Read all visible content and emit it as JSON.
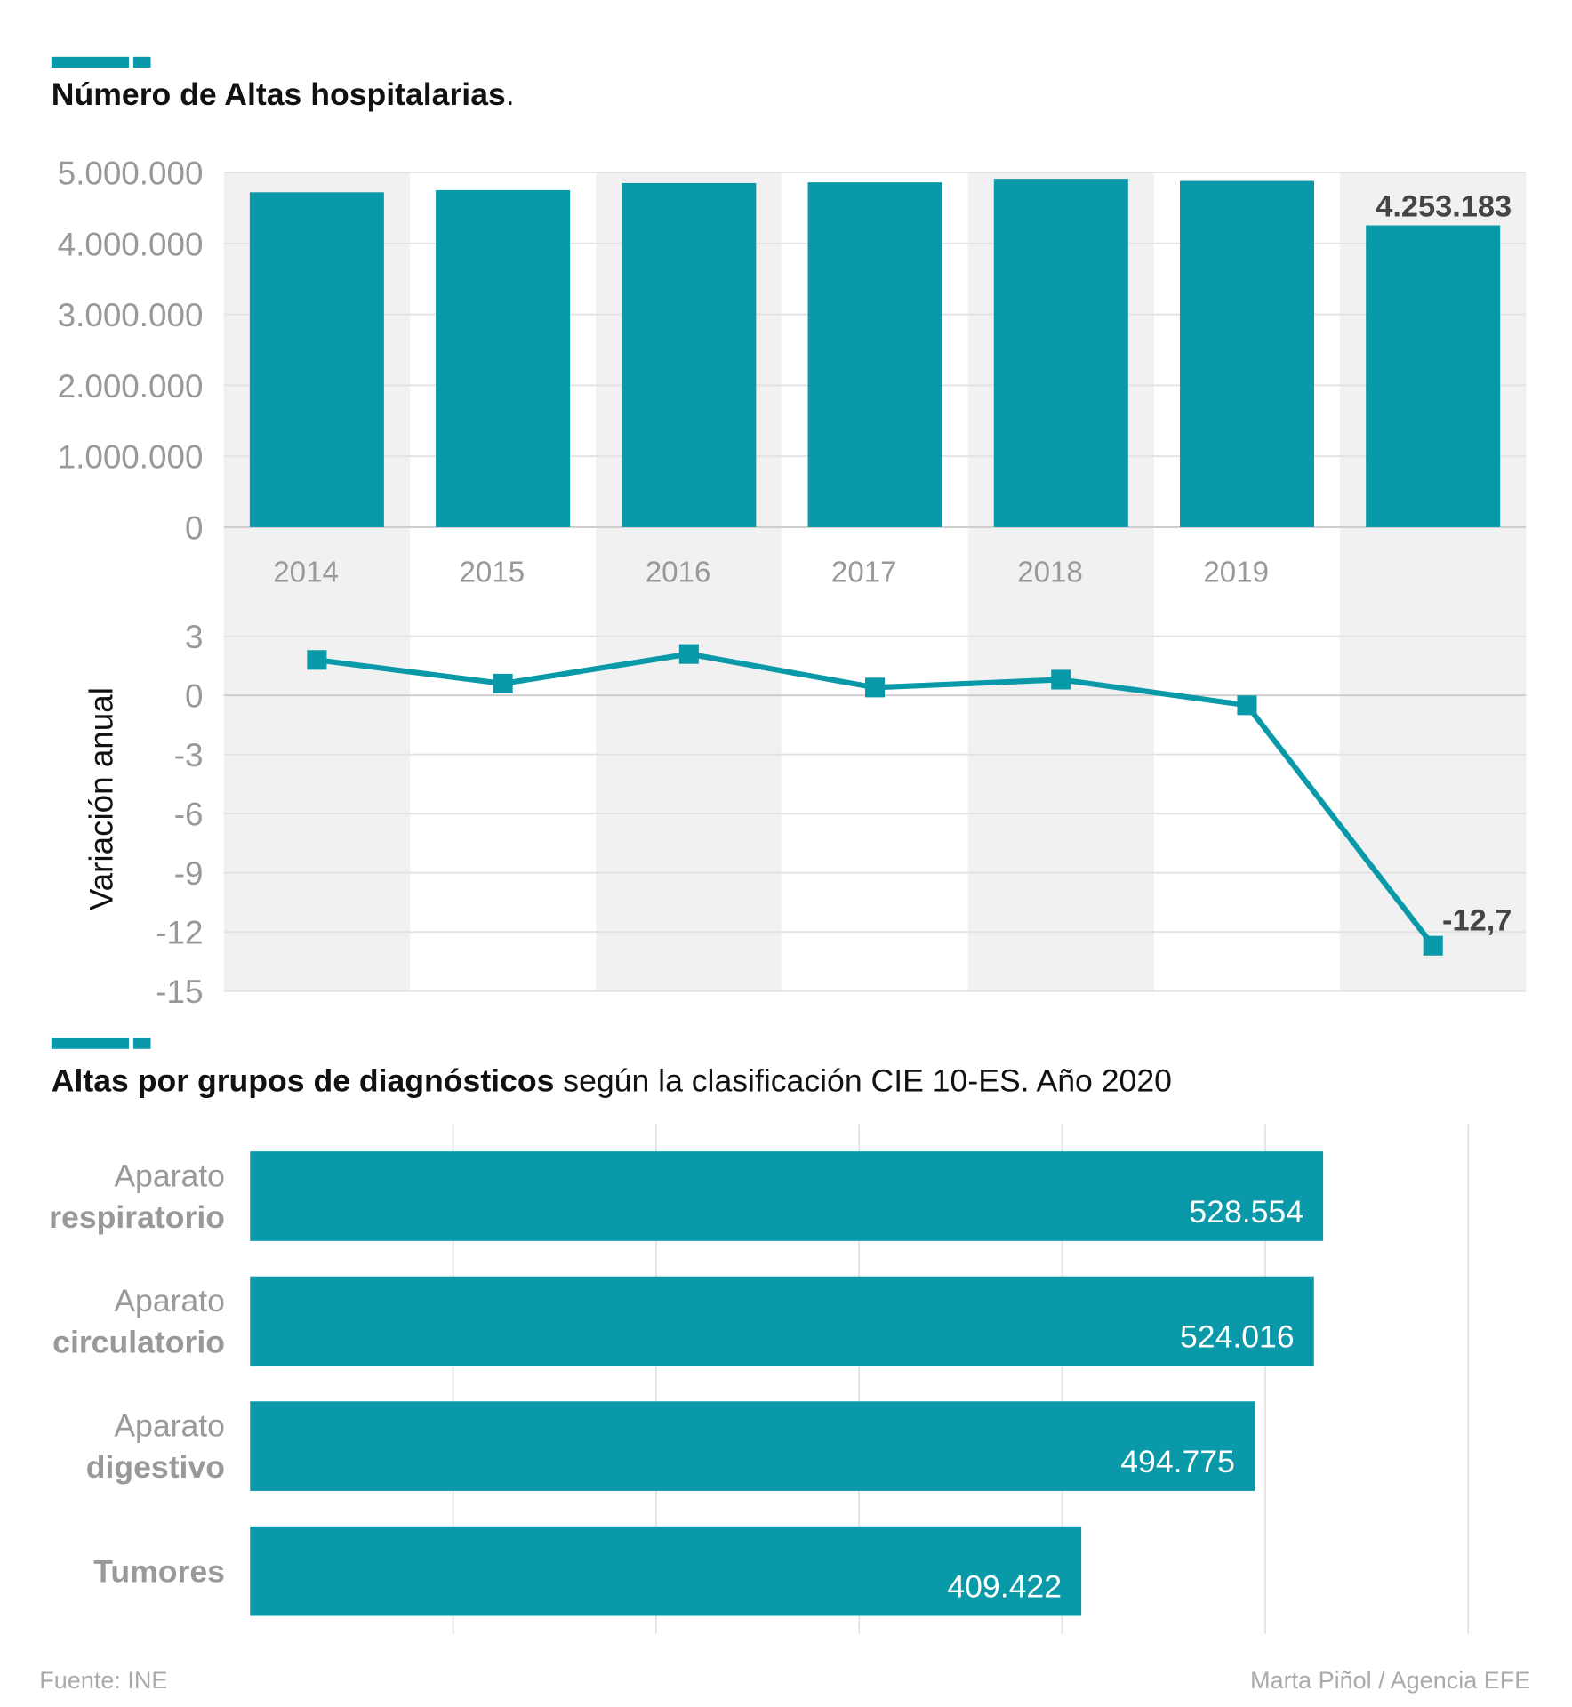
{
  "chart_data": [
    {
      "type": "bar",
      "title": [
        "Número de Altas hospitalarias",
        "."
      ],
      "color": "#0999a8",
      "categories": [
        "2014",
        "2015",
        "2016",
        "2017",
        "2018",
        "2019",
        null
      ],
      "values": [
        4720000,
        4750000,
        4850000,
        4860000,
        4910000,
        4880000,
        4253183
      ],
      "value_labels": [
        null,
        null,
        null,
        null,
        null,
        null,
        "4.253.183"
      ],
      "ylim": [
        0,
        5000000
      ],
      "yticks": [
        0,
        {
          "value": 1000000,
          "label": "1.000.000"
        },
        {
          "value": 2000000,
          "label": "2.000.000"
        },
        {
          "value": 3000000,
          "label": "3.000.000"
        },
        {
          "value": 4000000,
          "label": "4.000.000"
        },
        {
          "value": 5000000,
          "label": "5.000.000"
        }
      ],
      "grid": true
    },
    {
      "type": "line",
      "ylabel": "Variación anual",
      "color": "#0999a8",
      "values": [
        1.8,
        0.6,
        2.1,
        0.4,
        0.8,
        -0.5,
        -12.7
      ],
      "value_labels": [
        null,
        null,
        null,
        null,
        null,
        null,
        "-12,7"
      ],
      "ylim": [
        -15,
        3
      ],
      "yticks": [
        3,
        0,
        -3,
        -6,
        -9,
        -12,
        -15
      ],
      "grid": true
    },
    {
      "type": "hbar",
      "title": [
        "Altas por grupos de diagnósticos",
        " según la clasificación CIE 10-ES. Año 2020"
      ],
      "color": "#0999a8",
      "categories": [
        [
          "Aparato",
          "respiratorio"
        ],
        [
          "Aparato",
          "circulatorio"
        ],
        [
          "Aparato",
          "digestivo"
        ],
        [
          "Tumores"
        ]
      ],
      "values": [
        528554,
        524016,
        494775,
        409422
      ],
      "value_labels": [
        "528.554",
        "524.016",
        "494.775",
        "409.422"
      ],
      "xlim": [
        0,
        600000
      ],
      "xticks": [
        0,
        100000,
        200000,
        300000,
        400000,
        500000,
        600000
      ],
      "grid": true
    }
  ],
  "footer": {
    "source": "Fuente: INE",
    "credit": "Marta Piñol / Agencia EFE"
  }
}
